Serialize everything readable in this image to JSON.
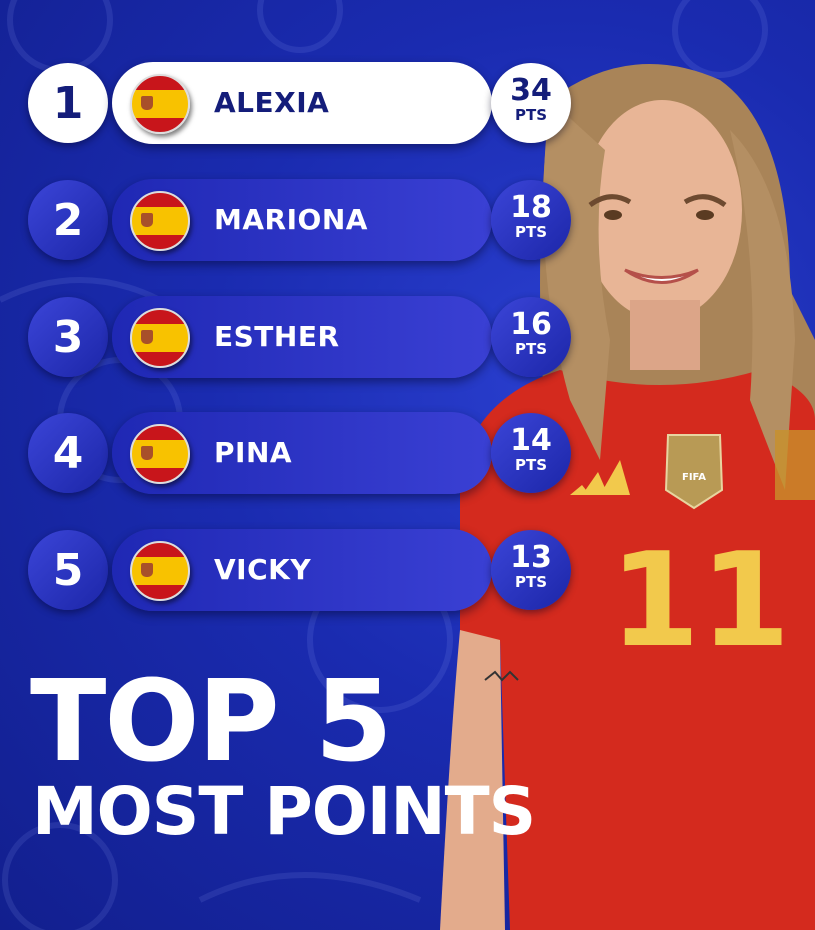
{
  "leaderboard": [
    {
      "rank": "1",
      "name": "ALEXIA",
      "points": "34",
      "unit": "PTS",
      "country": "Spain"
    },
    {
      "rank": "2",
      "name": "MARIONA",
      "points": "18",
      "unit": "PTS",
      "country": "Spain"
    },
    {
      "rank": "3",
      "name": "ESTHER",
      "points": "16",
      "unit": "PTS",
      "country": "Spain"
    },
    {
      "rank": "4",
      "name": "PINA",
      "points": "14",
      "unit": "PTS",
      "country": "Spain"
    },
    {
      "rank": "5",
      "name": "VICKY",
      "points": "13",
      "unit": "PTS",
      "country": "Spain"
    }
  ],
  "title": {
    "line1": "TOP 5",
    "line2": "MOST POINTS"
  },
  "photo": {
    "jersey_number": "11",
    "badge_text": "FIFA"
  },
  "colors": {
    "background": "#1a2bb0",
    "highlight": "#ffffff",
    "text_dark": "#141d7a",
    "jersey": "#d42a1e",
    "jersey_number": "#f2c94c"
  }
}
